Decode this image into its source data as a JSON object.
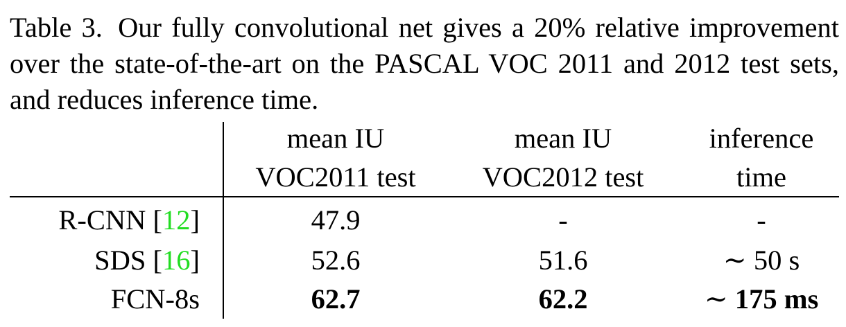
{
  "caption": {
    "label": "Table 3.",
    "text": "Our fully convolutional net gives a 20% relative improvement over the state-of-the-art on the PASCAL VOC 2011 and 2012 test sets, and reduces inference time."
  },
  "table": {
    "headers": [
      {
        "line1": "mean IU",
        "line2": "VOC2011 test"
      },
      {
        "line1": "mean IU",
        "line2": "VOC2012 test"
      },
      {
        "line1": "inference",
        "line2": "time"
      }
    ],
    "rows": [
      {
        "method": "R-CNN",
        "cite": "12",
        "voc2011": "47.9",
        "voc2012": "-",
        "time": "-",
        "bold": false
      },
      {
        "method": "SDS",
        "cite": "16",
        "voc2011": "52.6",
        "voc2012": "51.6",
        "time_prefix": "∼",
        "time": "50 s",
        "bold": false
      },
      {
        "method": "FCN-8s",
        "cite": "",
        "voc2011": "62.7",
        "voc2012": "62.2",
        "time_prefix": "∼",
        "time": "175 ms",
        "bold": true
      }
    ]
  },
  "colors": {
    "citation": "#22dd22",
    "text": "#000000"
  }
}
